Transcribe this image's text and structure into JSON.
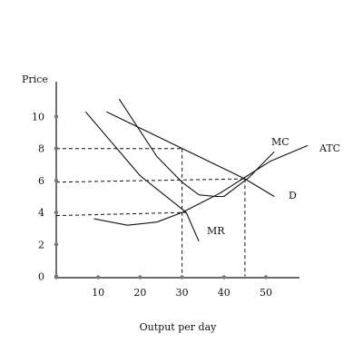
{
  "chart_data": {
    "type": "line",
    "title": "",
    "xlabel": "Output per day",
    "ylabel": "Price",
    "xlim": [
      0,
      57
    ],
    "ylim": [
      0,
      12
    ],
    "x_ticks": [
      10,
      20,
      30,
      40,
      50
    ],
    "y_ticks": [
      0,
      2,
      4,
      6,
      8,
      10
    ],
    "grid": false,
    "series": [
      {
        "name": "D",
        "values": [
          [
            12,
            10.3
          ],
          [
            45,
            6.1
          ],
          [
            52,
            5.0
          ]
        ]
      },
      {
        "name": "MR",
        "values": [
          [
            7,
            10.3
          ],
          [
            20,
            6.3
          ],
          [
            31,
            4.0
          ],
          [
            34,
            2.2
          ]
        ]
      },
      {
        "name": "MC",
        "values": [
          [
            15,
            11.1
          ],
          [
            20,
            9.1
          ],
          [
            24,
            7.5
          ],
          [
            30,
            5.9
          ],
          [
            34,
            5.1
          ],
          [
            38,
            5.0
          ],
          [
            40,
            5.0
          ],
          [
            46,
            6.2
          ],
          [
            52,
            7.8
          ]
        ]
      },
      {
        "name": "ATC",
        "values": [
          [
            9,
            3.6
          ],
          [
            17,
            3.2
          ],
          [
            24,
            3.4
          ],
          [
            30,
            4.0
          ],
          [
            39,
            5.2
          ],
          [
            45,
            6.2
          ],
          [
            51,
            7.2
          ],
          [
            60,
            8.2
          ]
        ]
      }
    ],
    "reference_lines": [
      {
        "points": [
          [
            0,
            8
          ],
          [
            30,
            8
          ]
        ]
      },
      {
        "points": [
          [
            30,
            8
          ],
          [
            30,
            0
          ]
        ]
      },
      {
        "points": [
          [
            0,
            3.8
          ],
          [
            31,
            4.0
          ]
        ]
      },
      {
        "points": [
          [
            0,
            5.9
          ],
          [
            45,
            6.1
          ]
        ]
      },
      {
        "points": [
          [
            45,
            6.1
          ],
          [
            45,
            0
          ]
        ]
      }
    ],
    "axis_markers": {
      "x": [
        0,
        10,
        20,
        30,
        40,
        50
      ],
      "y": [
        0,
        2,
        4,
        6,
        8,
        10
      ]
    }
  }
}
